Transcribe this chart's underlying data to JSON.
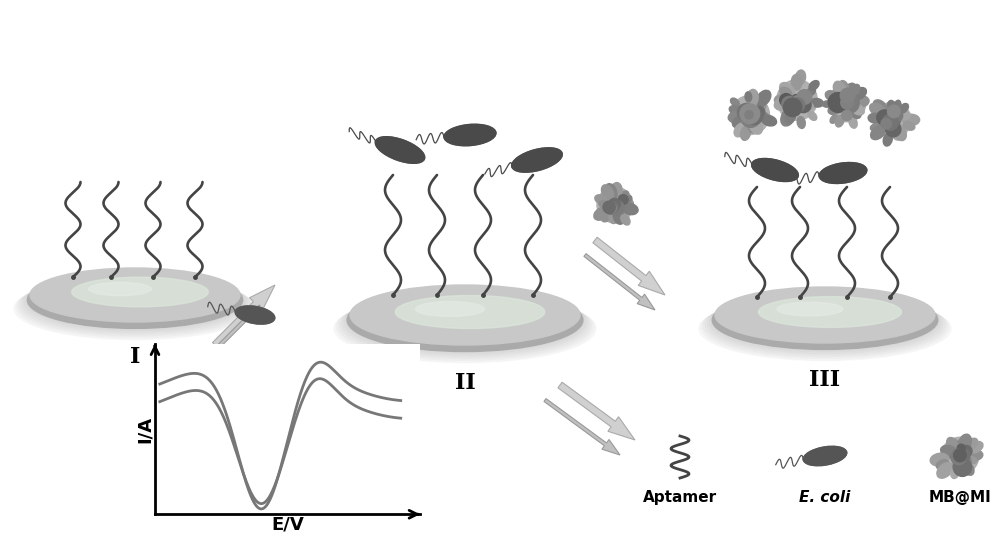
{
  "background_color": "#ffffff",
  "stage_labels": [
    "I",
    "II",
    "III"
  ],
  "legend_labels": [
    "Aptamer",
    "E. coli",
    "MB@MI"
  ],
  "cv_xlabel": "E/V",
  "cv_ylabel": "I/A",
  "electrode_fill": "#d8d8d8",
  "electrode_highlight": "#e8ede8",
  "electrode_shadow": "#bbbbbb",
  "aptamer_color": "#444444",
  "bacteria_color": "#555555",
  "nanoflower_color": "#888888",
  "arrow_fill": "#cccccc",
  "arrow_edge": "#aaaaaa",
  "graph_line_color": "#777777",
  "label_fontsize": 16,
  "legend_fontsize": 11
}
